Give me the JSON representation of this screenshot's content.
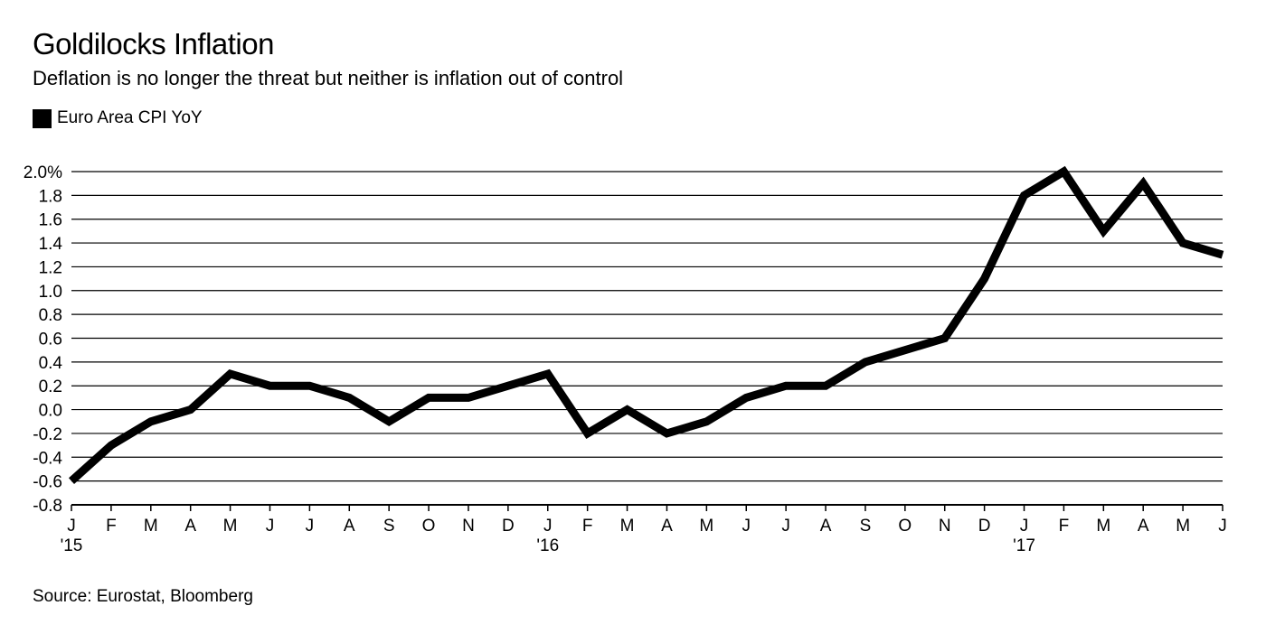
{
  "chart_data": {
    "type": "line",
    "title": "Goldilocks Inflation",
    "subtitle": "Deflation is no longer the threat but neither is inflation out of control",
    "source": "Source: Eurostat, Bloomberg",
    "xlabel": "",
    "ylabel": "",
    "ylim": [
      -0.8,
      2.0
    ],
    "yticks": [
      "2.0%",
      "1.8",
      "1.6",
      "1.4",
      "1.2",
      "1.0",
      "0.8",
      "0.6",
      "0.4",
      "0.2",
      "0.0",
      "-0.2",
      "-0.4",
      "-0.6",
      "-0.8"
    ],
    "ytick_values": [
      2.0,
      1.8,
      1.6,
      1.4,
      1.2,
      1.0,
      0.8,
      0.6,
      0.4,
      0.2,
      0.0,
      -0.2,
      -0.4,
      -0.6,
      -0.8
    ],
    "grid": true,
    "legend_position": "top-left",
    "line_color": "#000000",
    "categories": [
      "J",
      "F",
      "M",
      "A",
      "M",
      "J",
      "J",
      "A",
      "S",
      "O",
      "N",
      "D",
      "J",
      "F",
      "M",
      "A",
      "M",
      "J",
      "J",
      "A",
      "S",
      "O",
      "N",
      "D",
      "J",
      "F",
      "M",
      "A",
      "M",
      "J"
    ],
    "year_labels": [
      {
        "index": 0,
        "label": "'15"
      },
      {
        "index": 12,
        "label": "'16"
      },
      {
        "index": 24,
        "label": "'17"
      }
    ],
    "series": [
      {
        "name": "Euro Area CPI YoY",
        "values": [
          -0.6,
          -0.3,
          -0.1,
          0.0,
          0.3,
          0.2,
          0.2,
          0.1,
          -0.1,
          0.1,
          0.1,
          0.2,
          0.3,
          -0.2,
          0.0,
          -0.2,
          -0.1,
          0.1,
          0.2,
          0.2,
          0.4,
          0.5,
          0.6,
          1.1,
          1.8,
          2.0,
          1.5,
          1.9,
          1.4,
          1.3
        ]
      }
    ]
  }
}
